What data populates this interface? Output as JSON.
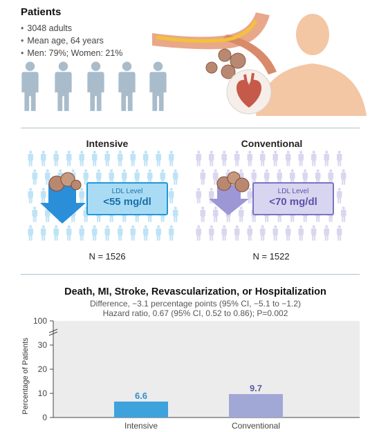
{
  "patients": {
    "title": "Patients",
    "items": [
      "3048 adults",
      "Mean age, 64 years",
      "Men: 79%; Women: 21%"
    ]
  },
  "groups": {
    "intensive": {
      "title": "Intensive",
      "ldl_label": "LDL Level",
      "ldl_value": "<55 mg/dl",
      "n": "N = 1526",
      "color": "#1f97d8"
    },
    "conventional": {
      "title": "Conventional",
      "ldl_label": "LDL Level",
      "ldl_value": "<70 mg/dl",
      "n": "N = 1522",
      "color": "#7a72c2"
    }
  },
  "colors": {
    "person_silhouette": "#a9bccb",
    "intensive_bar": "#3ea2dd",
    "conventional_bar": "#a1a8d6",
    "plot_bg": "#ececec"
  },
  "chart_data": {
    "type": "bar",
    "title": "Death, MI, Stroke, Revascularization, or Hospitalization",
    "subtitle_lines": [
      "Difference, −3.1 percentage points (95% CI, −5.1 to −1.2)",
      "Hazard ratio, 0.67 (95% CI, 0.52 to 0.86); P=0.002"
    ],
    "categories": [
      "Intensive",
      "Conventional"
    ],
    "values": [
      6.6,
      9.7
    ],
    "value_labels": [
      "6.6",
      "9.7"
    ],
    "ylabel": "Percentage of Patients",
    "xlabel": "",
    "y_ticks": [
      "0",
      "10",
      "20",
      "30",
      "100"
    ],
    "ylim": [
      0,
      100
    ],
    "axis_break": "between 30 and 100",
    "grid": false
  }
}
